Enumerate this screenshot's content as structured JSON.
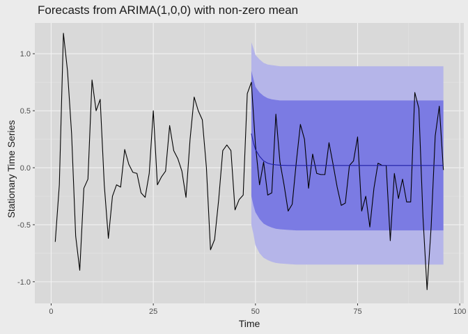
{
  "chart_data": {
    "type": "line",
    "title": "Forecasts from ARIMA(1,0,0) with non-zero mean",
    "xlabel": "Time",
    "ylabel": "Stationary Time Series",
    "xlim": [
      -4,
      101
    ],
    "ylim": [
      -1.19,
      1.27
    ],
    "x_ticks": [
      0,
      25,
      50,
      75,
      100
    ],
    "y_ticks": [
      -1.0,
      -0.5,
      0.0,
      0.5,
      1.0
    ],
    "x_tick_labels": [
      "0",
      "25",
      "50",
      "75",
      "100"
    ],
    "y_tick_labels": [
      "-1.0",
      "-0.5",
      "0.0",
      "0.5",
      "1.0"
    ],
    "grid": true,
    "legend": "none",
    "colors": {
      "panel": "#d9d9d9",
      "grid_major": "#f2f2f2",
      "grid_minor": "#e4e4e4",
      "series": "#000000",
      "band_80": "#7b7be3",
      "band_95": "#b5b5e9",
      "forecast_mean": "#1e1ea8"
    },
    "series": [
      {
        "type": "line",
        "x": [
          1,
          2,
          3,
          4,
          5,
          6,
          7,
          8,
          9,
          10,
          11,
          12,
          13,
          14,
          15,
          16,
          17,
          18,
          19,
          20,
          21,
          22,
          23,
          24,
          25,
          26,
          27,
          28,
          29,
          30,
          31,
          32,
          33,
          34,
          35,
          36,
          37,
          38,
          39,
          40,
          41,
          42,
          43,
          44,
          45,
          46,
          47,
          48,
          49,
          50,
          51,
          52,
          53,
          54,
          55,
          56,
          57,
          58,
          59,
          60,
          61,
          62,
          63,
          64,
          65,
          66,
          67,
          68,
          69,
          70,
          71,
          72,
          73,
          74,
          75,
          76,
          77,
          78,
          79,
          80,
          81,
          82,
          83,
          84,
          85,
          86,
          87,
          88,
          89,
          90,
          91,
          92,
          93,
          94,
          95,
          96
        ],
        "values": [
          -0.65,
          -0.15,
          1.18,
          0.85,
          0.3,
          -0.6,
          -0.9,
          -0.18,
          -0.1,
          0.77,
          0.5,
          0.6,
          -0.15,
          -0.62,
          -0.25,
          -0.15,
          -0.17,
          0.16,
          0.03,
          -0.04,
          -0.05,
          -0.22,
          -0.26,
          -0.05,
          0.5,
          -0.15,
          -0.08,
          -0.03,
          0.37,
          0.15,
          0.08,
          -0.03,
          -0.26,
          0.25,
          0.62,
          0.5,
          0.42,
          0.0,
          -0.72,
          -0.63,
          -0.28,
          0.15,
          0.2,
          0.15,
          -0.37,
          -0.28,
          -0.24,
          0.65,
          0.75,
          0.2,
          -0.15,
          0.05,
          -0.24,
          -0.22,
          0.47,
          0.05,
          -0.15,
          -0.38,
          -0.32,
          0.05,
          0.38,
          0.25,
          -0.18,
          0.12,
          -0.05,
          -0.06,
          -0.06,
          0.22,
          0.03,
          -0.17,
          -0.33,
          -0.31,
          0.02,
          0.06,
          0.27,
          -0.38,
          -0.25,
          -0.52,
          -0.18,
          0.04,
          0.02,
          0.02,
          -0.64,
          -0.05,
          -0.27,
          -0.1,
          -0.3,
          -0.3,
          0.66,
          0.52,
          -0.43,
          -1.07,
          -0.52,
          0.28,
          0.54,
          -0.02
        ]
      },
      {
        "type": "forecast",
        "x": [
          49,
          49.5,
          50,
          51,
          52,
          53,
          54,
          55,
          56,
          58,
          60,
          65,
          70,
          80,
          90,
          96
        ],
        "mean": [
          0.3,
          0.22,
          0.16,
          0.1,
          0.06,
          0.04,
          0.03,
          0.025,
          0.022,
          0.02,
          0.02,
          0.02,
          0.02,
          0.02,
          0.02,
          0.02
        ],
        "lower80": [
          -0.25,
          -0.33,
          -0.39,
          -0.45,
          -0.49,
          -0.51,
          -0.525,
          -0.535,
          -0.54,
          -0.545,
          -0.55,
          -0.55,
          -0.55,
          -0.55,
          -0.55,
          -0.55
        ],
        "upper80": [
          0.85,
          0.78,
          0.71,
          0.66,
          0.63,
          0.61,
          0.6,
          0.595,
          0.59,
          0.59,
          0.59,
          0.59,
          0.59,
          0.59,
          0.59,
          0.59
        ],
        "lower95": [
          -0.5,
          -0.58,
          -0.68,
          -0.75,
          -0.79,
          -0.81,
          -0.825,
          -0.835,
          -0.84,
          -0.845,
          -0.85,
          -0.85,
          -0.85,
          -0.85,
          -0.85,
          -0.85
        ],
        "upper95": [
          1.1,
          1.05,
          0.99,
          0.95,
          0.92,
          0.905,
          0.9,
          0.895,
          0.89,
          0.89,
          0.89,
          0.89,
          0.89,
          0.89,
          0.89,
          0.89
        ]
      }
    ]
  }
}
